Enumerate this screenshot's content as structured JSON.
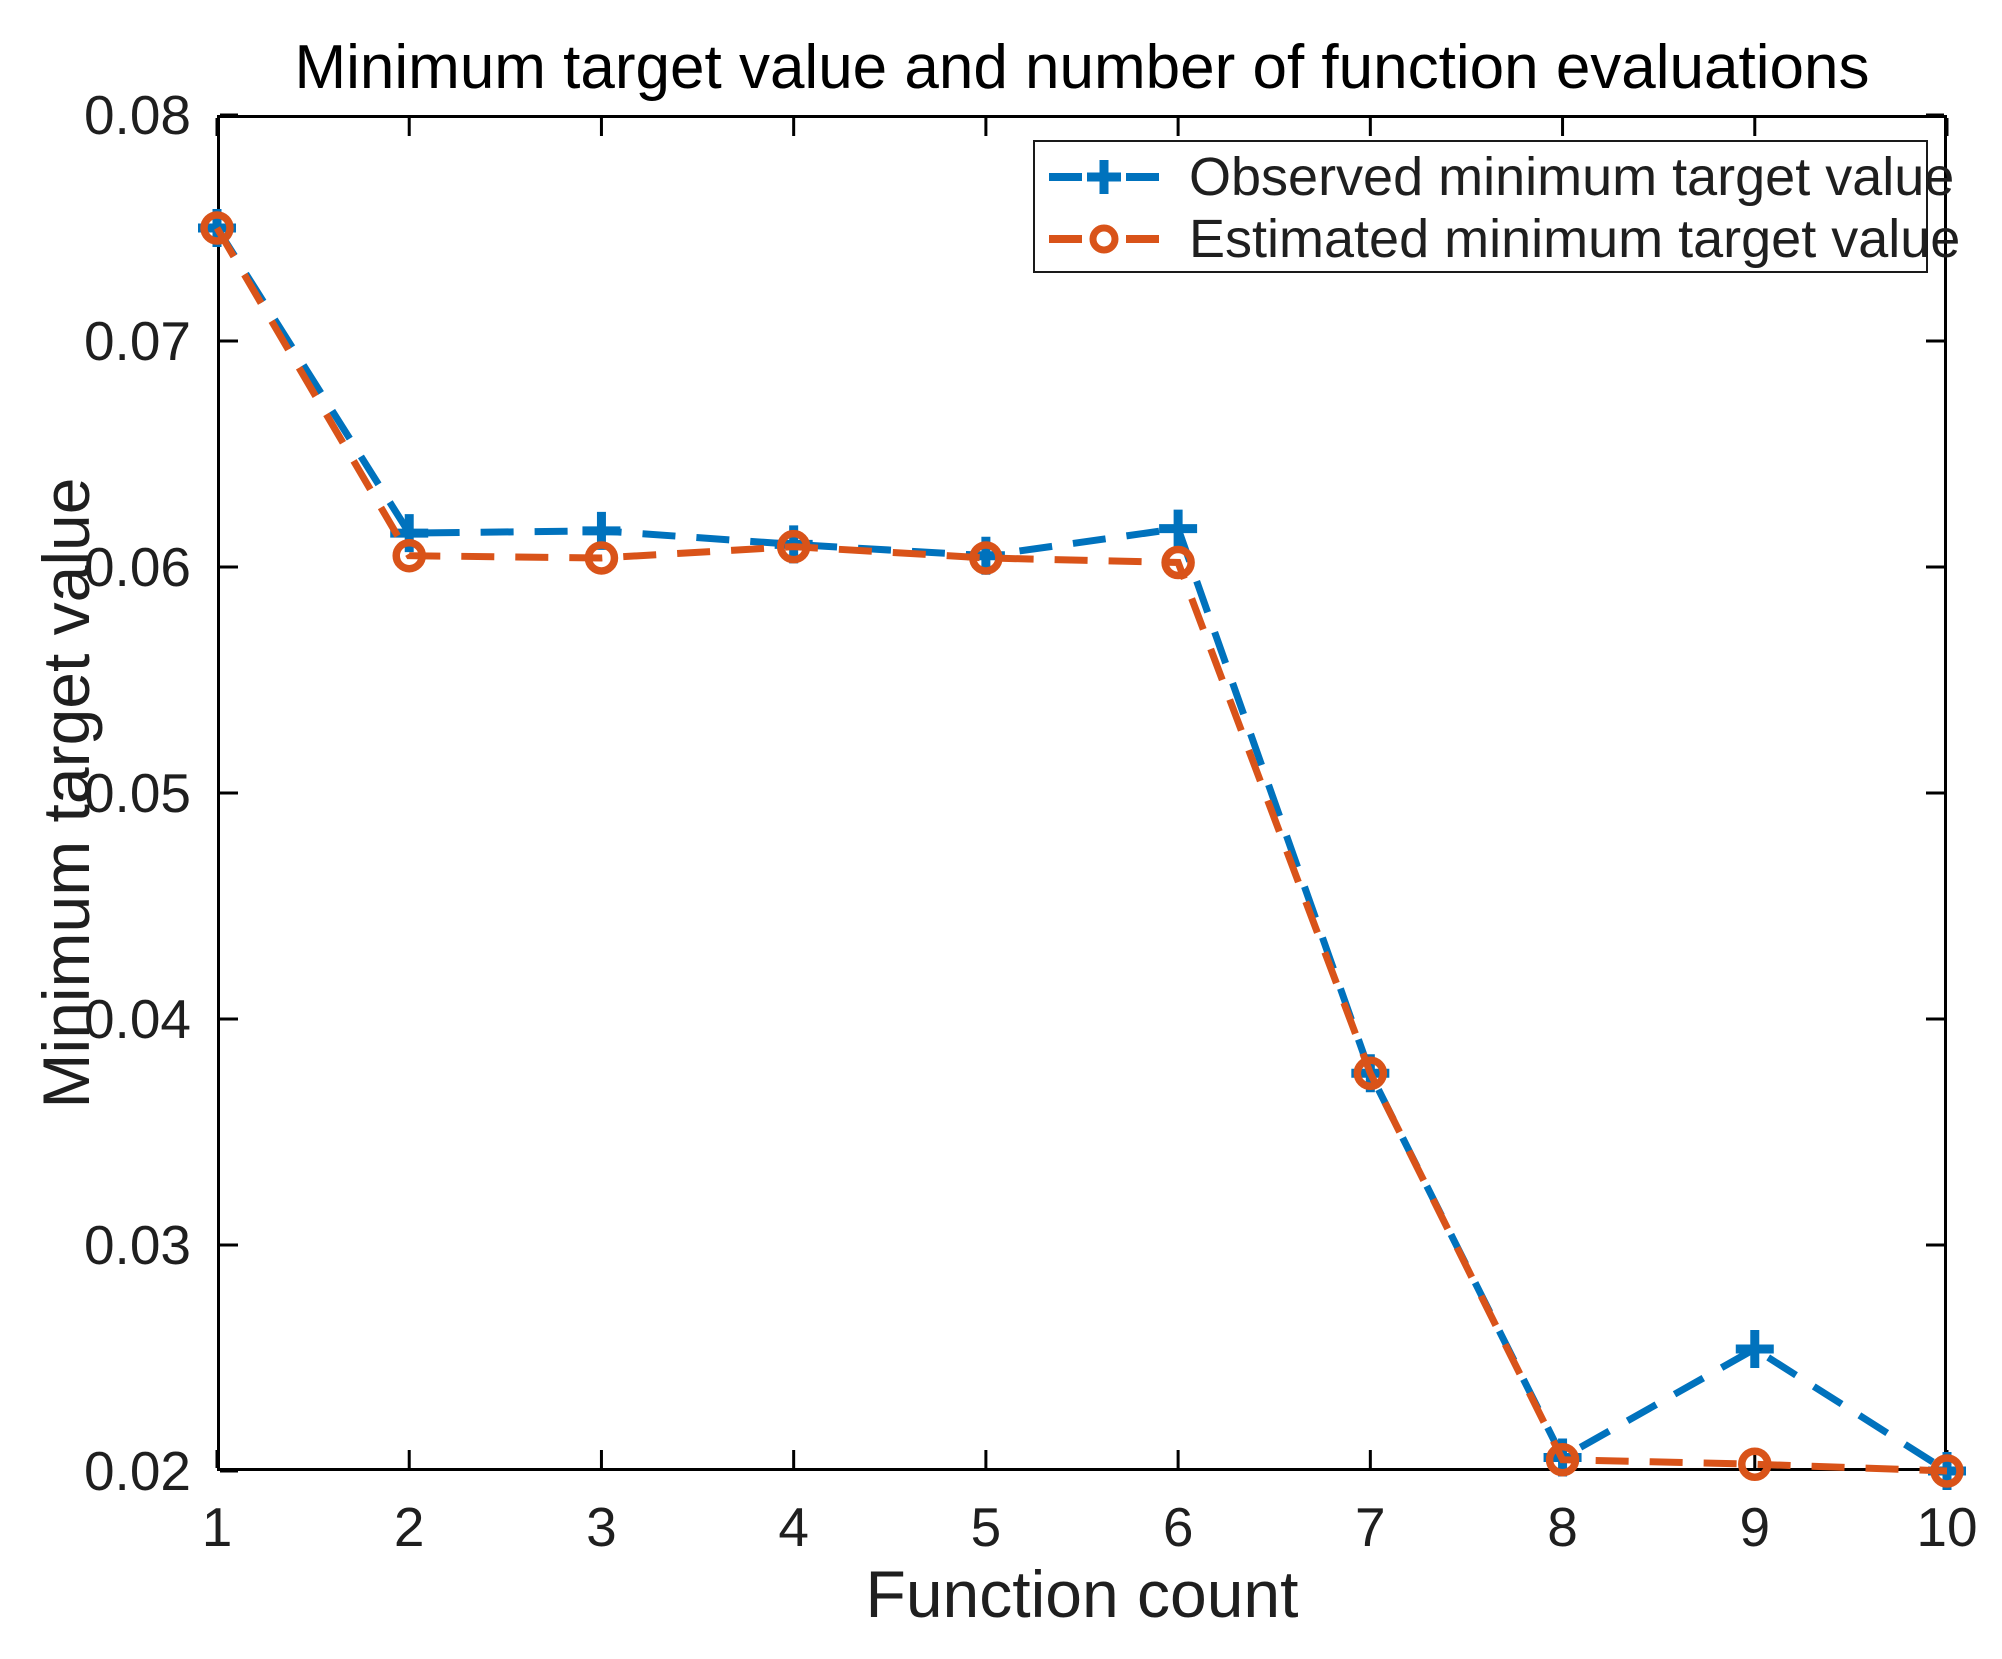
{
  "figure": {
    "background": "#ffffff"
  },
  "colors": {
    "axis": "#000000",
    "text": "#1f1f1f",
    "title": "#000000",
    "observed": "#0072BD",
    "estimated": "#D95319"
  },
  "chart_data": {
    "type": "line",
    "title": "Minimum target value and number of function evaluations",
    "xlabel": "Function count",
    "ylabel": "Minimum target value",
    "x": [
      1,
      2,
      3,
      4,
      5,
      6,
      7,
      8,
      9,
      10
    ],
    "series": [
      {
        "name": "Observed minimum target value",
        "color": "#0072BD",
        "marker": "plus",
        "linestyle": "dashed",
        "values": [
          0.075,
          0.0615,
          0.0616,
          0.061,
          0.0605,
          0.0617,
          0.0376,
          0.0206,
          0.0254,
          0.02
        ]
      },
      {
        "name": "Estimated minimum target value",
        "color": "#D95319",
        "marker": "circle",
        "linestyle": "dashed",
        "values": [
          0.075,
          0.0605,
          0.0604,
          0.0609,
          0.0604,
          0.0602,
          0.0376,
          0.0205,
          0.0203,
          0.02
        ]
      }
    ],
    "xlim": [
      1,
      10
    ],
    "ylim": [
      0.02,
      0.08
    ],
    "xticks": [
      "1",
      "2",
      "3",
      "4",
      "5",
      "6",
      "7",
      "8",
      "9",
      "10"
    ],
    "yticks": [
      "0.02",
      "0.03",
      "0.04",
      "0.05",
      "0.06",
      "0.07",
      "0.08"
    ],
    "grid": false,
    "legend_position": "top-right",
    "legend_border": true
  }
}
